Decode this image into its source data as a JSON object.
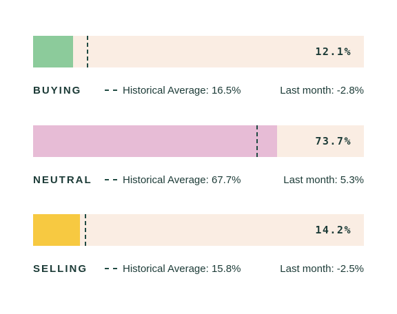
{
  "chart_data": {
    "type": "bar",
    "orientation": "horizontal",
    "xlim": [
      0,
      100
    ],
    "categories": [
      "BUYING",
      "NEUTRAL",
      "SELLING"
    ],
    "values": [
      12.1,
      73.7,
      14.2
    ],
    "historical_average": [
      16.5,
      67.7,
      15.8
    ],
    "colors": [
      "#8ccb9b",
      "#e7bcd6",
      "#f7c941"
    ],
    "track_color": "#faede3",
    "rows": [
      {
        "label": "BUYING",
        "value_text": "12.1%",
        "legend_text": "Historical Average: 16.5%",
        "last_month_text": "Last month: -2.8%"
      },
      {
        "label": "NEUTRAL",
        "value_text": "73.7%",
        "legend_text": "Historical Average: 67.7%",
        "last_month_text": "Last month: 5.3%"
      },
      {
        "label": "SELLING",
        "value_text": "14.2%",
        "legend_text": "Historical Average: 15.8%",
        "last_month_text": "Last month: -2.5%"
      }
    ]
  }
}
